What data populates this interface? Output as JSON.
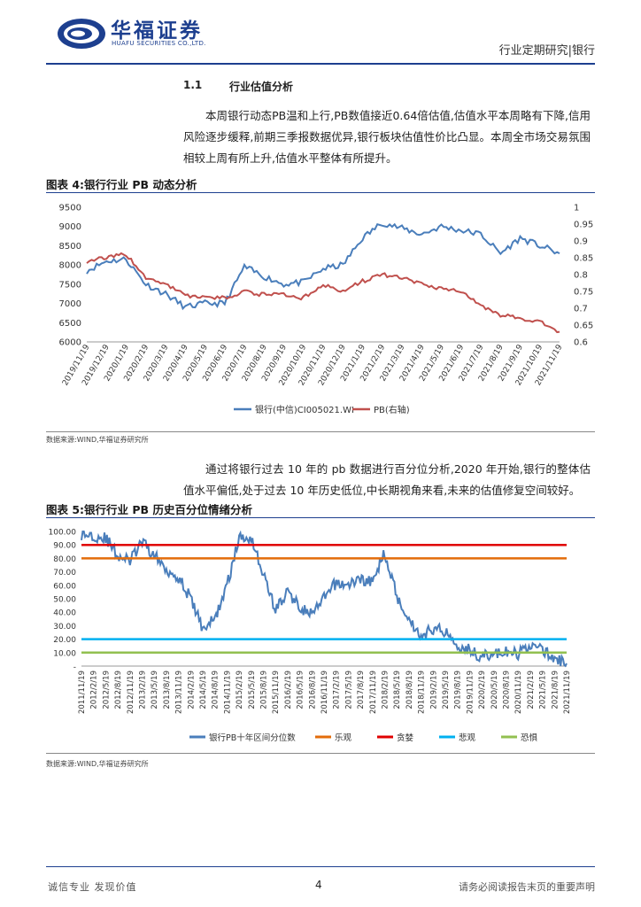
{
  "header": {
    "company_cn": "华福证券",
    "company_en": "HUAFU SECURITIES CO.,LTD.",
    "report_type": "行业定期研究|银行"
  },
  "section": {
    "number": "1.1",
    "title": "行业估值分析"
  },
  "paragraph1": "本周银行动态PB温和上行,PB数值接近0.64倍估值,估值水平本周略有下降,信用风险逐步缓释,前期三季报数据优异,银行板块估值性价比凸显。本周全市场交易氛围相较上周有所上升,估值水平整体有所提升。",
  "figure4": {
    "title": "图表 4:银行行业 PB 动态分析",
    "source": "数据来源:WIND,华福证券研究所"
  },
  "paragraph2": "通过将银行过去 10 年的 pb 数据进行百分位分析,2020 年开始,银行的整体估值水平偏低,处于过去 10 年历史低位,中长期视角来看,未来的估值修复空间较好。",
  "figure5": {
    "title": "图表 5:银行行业 PB 历史百分位情绪分析",
    "source": "数据来源:WIND,华福证券研究所"
  },
  "chart_data": [
    {
      "type": "line",
      "x": [
        "2019/11/19",
        "2019/12/19",
        "2020/1/19",
        "2020/2/19",
        "2020/3/19",
        "2020/4/19",
        "2020/5/19",
        "2020/6/19",
        "2020/7/19",
        "2020/8/19",
        "2020/9/19",
        "2020/10/19",
        "2020/11/19",
        "2020/12/19",
        "2021/1/19",
        "2021/2/19",
        "2021/3/19",
        "2021/4/19",
        "2021/5/19",
        "2021/6/19",
        "2021/7/19",
        "2021/8/19",
        "2021/9/19",
        "2021/10/19",
        "2021/11/19"
      ],
      "series": [
        {
          "name": "银行(中信)CI005021.WI",
          "axis": "left",
          "color": "#4a7ebb",
          "values": [
            7850,
            8100,
            8150,
            7500,
            7250,
            6900,
            7000,
            7000,
            7950,
            7700,
            7500,
            7550,
            7900,
            8000,
            8700,
            9100,
            8950,
            8800,
            9000,
            8900,
            8800,
            8300,
            8700,
            8500,
            8300
          ]
        },
        {
          "name": "PB(右轴)",
          "axis": "right",
          "color": "#c0504d",
          "values": [
            0.84,
            0.85,
            0.86,
            0.79,
            0.77,
            0.74,
            0.73,
            0.73,
            0.75,
            0.74,
            0.74,
            0.73,
            0.77,
            0.75,
            0.78,
            0.8,
            0.79,
            0.77,
            0.76,
            0.75,
            0.71,
            0.68,
            0.67,
            0.66,
            0.63
          ]
        }
      ],
      "yticks_left": [
        "9500",
        "9000",
        "8500",
        "8000",
        "7500",
        "7000",
        "6500",
        "6000"
      ],
      "yticks_right": [
        "1",
        "0.95",
        "0.9",
        "0.85",
        "0.8",
        "0.75",
        "0.7",
        "0.65",
        "0.6"
      ],
      "ylim_left": [
        6000,
        9500
      ],
      "ylim_right": [
        0.6,
        1.0
      ]
    },
    {
      "type": "line",
      "x": [
        "2011/11/19",
        "2012/2/19",
        "2012/5/19",
        "2012/8/19",
        "2012/11/19",
        "2013/2/19",
        "2013/5/19",
        "2013/8/19",
        "2013/11/19",
        "2014/2/19",
        "2014/5/19",
        "2014/8/19",
        "2014/11/19",
        "2015/2/19",
        "2015/5/19",
        "2015/8/19",
        "2015/11/19",
        "2016/2/19",
        "2016/5/19",
        "2016/8/19",
        "2016/11/19",
        "2017/2/19",
        "2017/5/19",
        "2017/8/19",
        "2017/11/19",
        "2018/2/19",
        "2018/5/19",
        "2018/8/19",
        "2018/11/19",
        "2019/2/19",
        "2019/5/19",
        "2019/8/19",
        "2019/11/19",
        "2020/2/19",
        "2020/5/19",
        "2020/8/19",
        "2020/11/19",
        "2021/2/19",
        "2021/5/19",
        "2021/8/19",
        "2021/11/19"
      ],
      "series": [
        {
          "name": "银行PB十年区间分位数",
          "color": "#4a7ebb",
          "values": [
            98,
            97,
            95,
            82,
            78,
            92,
            82,
            72,
            66,
            50,
            28,
            35,
            60,
            95,
            96,
            68,
            42,
            55,
            44,
            38,
            50,
            62,
            60,
            65,
            62,
            85,
            52,
            35,
            22,
            28,
            26,
            16,
            12,
            7,
            9,
            10,
            9,
            16,
            12,
            5,
            2
          ]
        },
        {
          "name": "乐观",
          "color": "#e36c0a",
          "constant": 80
        },
        {
          "name": "贪婪",
          "color": "#e00000",
          "constant": 90
        },
        {
          "name": "悲观",
          "color": "#00b0f0",
          "constant": 20
        },
        {
          "name": "恐惧",
          "color": "#92c050",
          "constant": 10
        }
      ],
      "yticks": [
        "100.00",
        "90.00",
        "80.00",
        "70.00",
        "60.00",
        "50.00",
        "40.00",
        "30.00",
        "20.00",
        "10.00",
        "-"
      ],
      "ylim": [
        0,
        100
      ]
    }
  ],
  "footer": {
    "left": "诚信专业  发现价值",
    "page": "4",
    "right": "请务必阅读报告末页的重要声明"
  }
}
